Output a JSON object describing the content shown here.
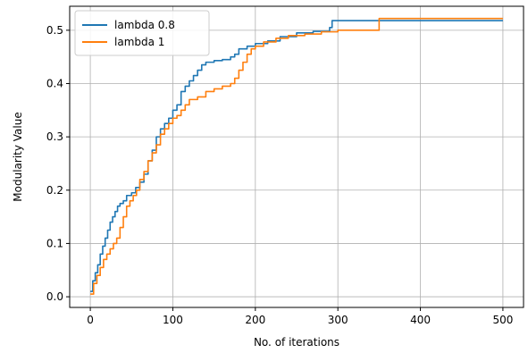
{
  "chart_data": {
    "type": "line",
    "title": "",
    "xlabel": "No. of iterations",
    "ylabel": "Modularity Value",
    "xlim": [
      -25,
      525
    ],
    "ylim": [
      -0.02,
      0.545
    ],
    "xticks": [
      0,
      100,
      200,
      300,
      400,
      500
    ],
    "yticks": [
      0.0,
      0.1,
      0.2,
      0.3,
      0.4,
      0.5
    ],
    "grid": true,
    "legend_position": "top-left",
    "series": [
      {
        "name": "lambda 0.8",
        "color": "#1f77b4",
        "step": true,
        "points": [
          [
            0,
            0.01
          ],
          [
            3,
            0.03
          ],
          [
            6,
            0.045
          ],
          [
            9,
            0.06
          ],
          [
            12,
            0.08
          ],
          [
            15,
            0.095
          ],
          [
            18,
            0.11
          ],
          [
            21,
            0.125
          ],
          [
            24,
            0.14
          ],
          [
            27,
            0.15
          ],
          [
            30,
            0.16
          ],
          [
            33,
            0.17
          ],
          [
            36,
            0.175
          ],
          [
            40,
            0.18
          ],
          [
            44,
            0.19
          ],
          [
            50,
            0.195
          ],
          [
            55,
            0.205
          ],
          [
            60,
            0.215
          ],
          [
            65,
            0.23
          ],
          [
            70,
            0.255
          ],
          [
            75,
            0.275
          ],
          [
            80,
            0.3
          ],
          [
            85,
            0.315
          ],
          [
            90,
            0.325
          ],
          [
            95,
            0.335
          ],
          [
            100,
            0.35
          ],
          [
            105,
            0.36
          ],
          [
            110,
            0.385
          ],
          [
            115,
            0.395
          ],
          [
            120,
            0.405
          ],
          [
            125,
            0.415
          ],
          [
            130,
            0.425
          ],
          [
            135,
            0.435
          ],
          [
            140,
            0.44
          ],
          [
            150,
            0.443
          ],
          [
            160,
            0.445
          ],
          [
            170,
            0.45
          ],
          [
            175,
            0.455
          ],
          [
            180,
            0.465
          ],
          [
            190,
            0.47
          ],
          [
            200,
            0.475
          ],
          [
            215,
            0.48
          ],
          [
            230,
            0.488
          ],
          [
            250,
            0.495
          ],
          [
            270,
            0.498
          ],
          [
            290,
            0.505
          ],
          [
            293,
            0.518
          ],
          [
            300,
            0.518
          ],
          [
            350,
            0.518
          ],
          [
            500,
            0.518
          ]
        ]
      },
      {
        "name": "lambda 1",
        "color": "#ff7f0e",
        "step": true,
        "points": [
          [
            0,
            0.005
          ],
          [
            4,
            0.025
          ],
          [
            8,
            0.04
          ],
          [
            12,
            0.055
          ],
          [
            16,
            0.07
          ],
          [
            20,
            0.08
          ],
          [
            24,
            0.09
          ],
          [
            28,
            0.1
          ],
          [
            32,
            0.11
          ],
          [
            36,
            0.13
          ],
          [
            40,
            0.15
          ],
          [
            44,
            0.17
          ],
          [
            48,
            0.18
          ],
          [
            52,
            0.19
          ],
          [
            56,
            0.2
          ],
          [
            60,
            0.22
          ],
          [
            65,
            0.235
          ],
          [
            70,
            0.255
          ],
          [
            75,
            0.27
          ],
          [
            80,
            0.285
          ],
          [
            85,
            0.305
          ],
          [
            90,
            0.315
          ],
          [
            95,
            0.325
          ],
          [
            100,
            0.335
          ],
          [
            105,
            0.34
          ],
          [
            110,
            0.35
          ],
          [
            115,
            0.36
          ],
          [
            120,
            0.37
          ],
          [
            130,
            0.375
          ],
          [
            140,
            0.385
          ],
          [
            150,
            0.39
          ],
          [
            160,
            0.395
          ],
          [
            170,
            0.4
          ],
          [
            175,
            0.41
          ],
          [
            180,
            0.425
          ],
          [
            185,
            0.44
          ],
          [
            190,
            0.455
          ],
          [
            195,
            0.465
          ],
          [
            200,
            0.47
          ],
          [
            210,
            0.478
          ],
          [
            225,
            0.485
          ],
          [
            240,
            0.49
          ],
          [
            260,
            0.493
          ],
          [
            280,
            0.497
          ],
          [
            300,
            0.5
          ],
          [
            345,
            0.5
          ],
          [
            350,
            0.522
          ],
          [
            500,
            0.522
          ]
        ]
      }
    ]
  }
}
